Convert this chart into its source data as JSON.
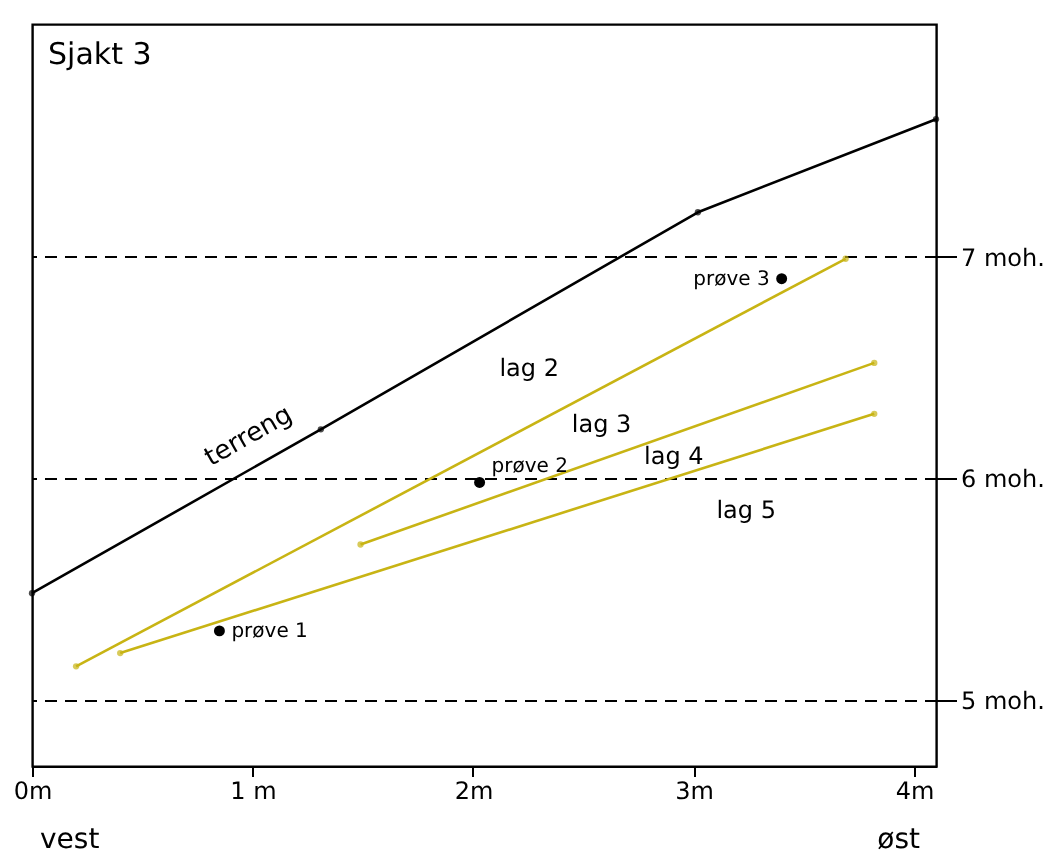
{
  "chart_data": {
    "type": "line",
    "title": "Sjakt 3",
    "xlim": [
      0,
      4.1
    ],
    "xticks": [
      {
        "value": 0,
        "label": "0m"
      },
      {
        "value": 1,
        "label": "1 m"
      },
      {
        "value": 2,
        "label": "2m"
      },
      {
        "value": 3,
        "label": "3m"
      },
      {
        "value": 4,
        "label": "4m"
      }
    ],
    "ylim": [
      4.7,
      8.05
    ],
    "yticks": [
      {
        "value": 5,
        "label": "5 moh."
      },
      {
        "value": 6,
        "label": "6 moh."
      },
      {
        "value": 7,
        "label": "7 moh."
      }
    ],
    "grid": "y",
    "marker": "circle",
    "series": [
      {
        "name": "terreng",
        "color": "#000000",
        "x": [
          0,
          1.31,
          3.02,
          4.1
        ],
        "values": [
          5.48,
          6.22,
          7.2,
          7.62
        ]
      },
      {
        "color": "#c8b414",
        "x": [
          0.2,
          3.69
        ],
        "values": [
          5.15,
          6.99
        ]
      },
      {
        "color": "#c8b414",
        "x": [
          1.49,
          3.82
        ],
        "values": [
          5.7,
          6.52
        ]
      },
      {
        "color": "#c8b414",
        "x": [
          0.4,
          3.82
        ],
        "values": [
          5.21,
          6.29
        ]
      },
      {
        "name": "prøve 1",
        "type": "scatter",
        "color": "#000000",
        "x": [
          0.85
        ],
        "values": [
          5.31
        ]
      },
      {
        "name": "prøve 2",
        "type": "scatter",
        "color": "#000000",
        "x": [
          2.03
        ],
        "values": [
          5.98
        ]
      },
      {
        "name": "prøve 3",
        "type": "scatter",
        "color": "#000000",
        "x": [
          3.4
        ],
        "values": [
          6.9
        ]
      }
    ],
    "annotations": [
      "lag 2",
      "lag 3",
      "lag 4",
      "lag 5",
      "vest",
      "øst"
    ]
  }
}
